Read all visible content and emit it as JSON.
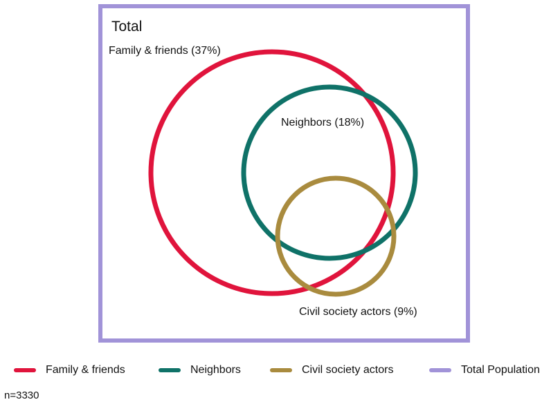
{
  "title": "Total",
  "sets": [
    {
      "key": "family",
      "label": "Family & friends (37%)",
      "legend": "Family & friends",
      "percent": 37,
      "color": "#e0143c"
    },
    {
      "key": "neighbors",
      "label": "Neighbors (18%)",
      "legend": "Neighbors",
      "percent": 18,
      "color": "#0f7268"
    },
    {
      "key": "civil",
      "label": "Civil society actors (9%)",
      "legend": "Civil society actors",
      "percent": 9,
      "color": "#a98b3e"
    }
  ],
  "total": {
    "legend": "Total Population",
    "color": "#a193d8"
  },
  "note": "n=3330"
}
